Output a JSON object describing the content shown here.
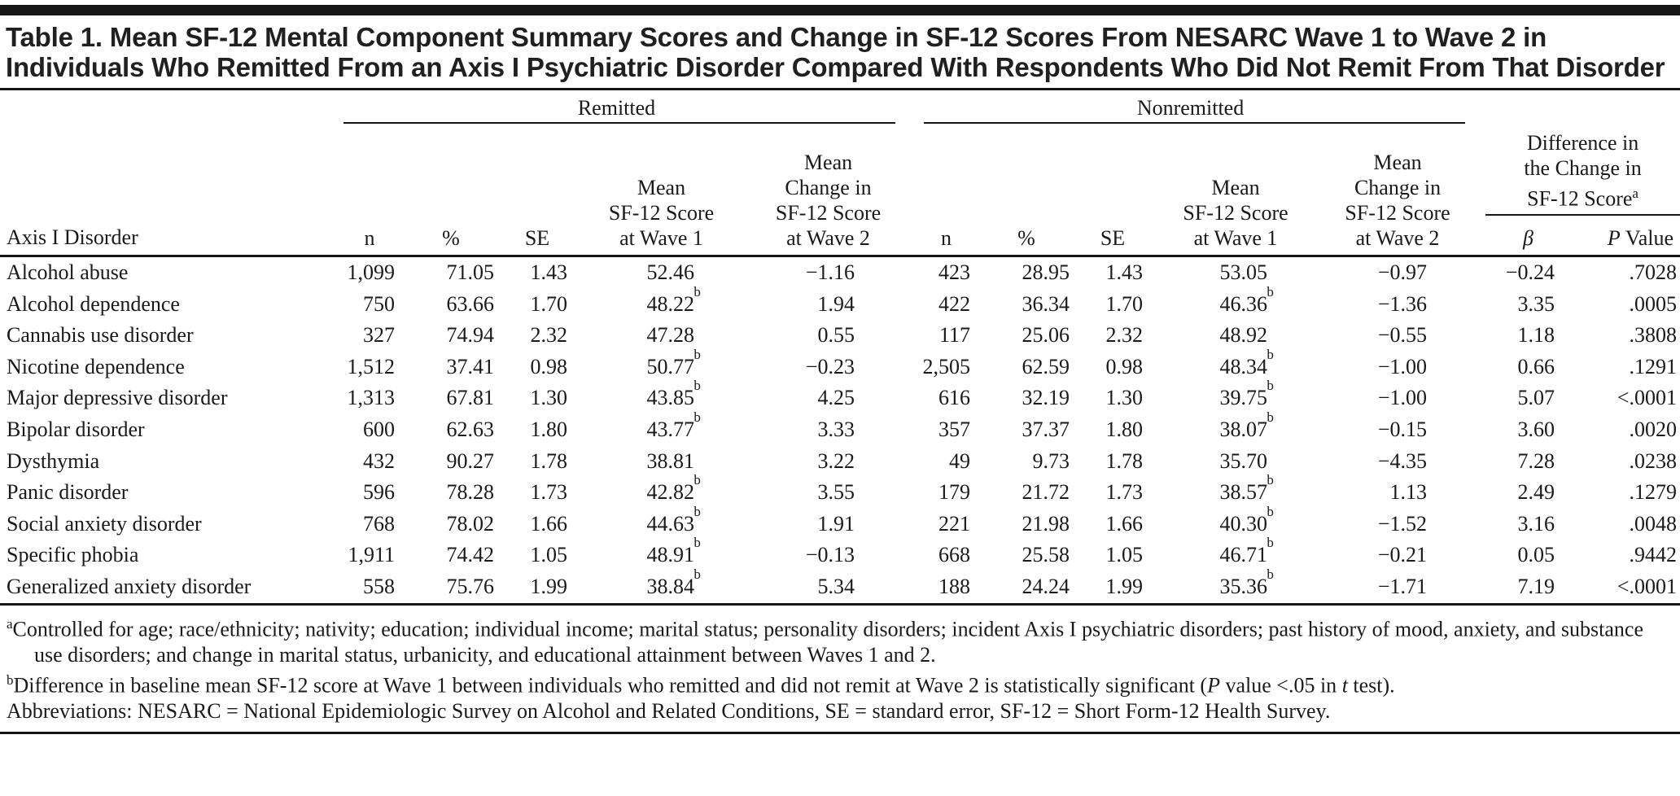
{
  "title": "Table 1. Mean SF-12 Mental Component Summary Scores and Change in SF-12 Scores From NESARC Wave 1 to Wave 2 in Individuals Who Remitted From an Axis I Psychiatric Disorder Compared With Respondents Who Did Not Remit From That Disorder",
  "table": {
    "row_axis_header": "Axis I Disorder",
    "groups": {
      "remitted_label": "Remitted",
      "nonremitted_label": "Nonremitted",
      "difference_label_lines": [
        "Difference in",
        "the Change in",
        "SF-12 Score"
      ],
      "difference_label_sup": "a"
    },
    "columns": {
      "n": "n",
      "percent": "%",
      "se": "SE",
      "mean_w1_lines": [
        "Mean",
        "SF-12 Score",
        "at Wave 1"
      ],
      "mean_change_w2_lines": [
        "Mean",
        "Change in",
        "SF-12 Score",
        "at Wave 2"
      ],
      "beta": "β",
      "p_value_segments": [
        {
          "i": "P"
        },
        {
          "t": " Value"
        }
      ]
    },
    "rows": [
      [
        "Alcohol abuse",
        "1,099",
        "71.05",
        "1.43",
        "52.46",
        "−1.16",
        "423",
        "28.95",
        "1.43",
        "53.05",
        "−0.97",
        "−0.24",
        ".7028"
      ],
      [
        "Alcohol dependence",
        "750",
        "63.66",
        "1.70",
        "48.22^b",
        "1.94",
        "422",
        "36.34",
        "1.70",
        "46.36^b",
        "−1.36",
        "3.35",
        ".0005"
      ],
      [
        "Cannabis use disorder",
        "327",
        "74.94",
        "2.32",
        "47.28",
        "0.55",
        "117",
        "25.06",
        "2.32",
        "48.92",
        "−0.55",
        "1.18",
        ".3808"
      ],
      [
        "Nicotine dependence",
        "1,512",
        "37.41",
        "0.98",
        "50.77^b",
        "−0.23",
        "2,505",
        "62.59",
        "0.98",
        "48.34^b",
        "−1.00",
        "0.66",
        ".1291"
      ],
      [
        "Major depressive disorder",
        "1,313",
        "67.81",
        "1.30",
        "43.85^b",
        "4.25",
        "616",
        "32.19",
        "1.30",
        "39.75^b",
        "−1.00",
        "5.07",
        "<.0001"
      ],
      [
        "Bipolar disorder",
        "600",
        "62.63",
        "1.80",
        "43.77^b",
        "3.33",
        "357",
        "37.37",
        "1.80",
        "38.07^b",
        "−0.15",
        "3.60",
        ".0020"
      ],
      [
        "Dysthymia",
        "432",
        "90.27",
        "1.78",
        "38.81",
        "3.22",
        "49",
        "9.73",
        "1.78",
        "35.70",
        "−4.35",
        "7.28",
        ".0238"
      ],
      [
        "Panic disorder",
        "596",
        "78.28",
        "1.73",
        "42.82^b",
        "3.55",
        "179",
        "21.72",
        "1.73",
        "38.57^b",
        "1.13",
        "2.49",
        ".1279"
      ],
      [
        "Social anxiety disorder",
        "768",
        "78.02",
        "1.66",
        "44.63^b",
        "1.91",
        "221",
        "21.98",
        "1.66",
        "40.30^b",
        "−1.52",
        "3.16",
        ".0048"
      ],
      [
        "Specific phobia",
        "1,911",
        "74.42",
        "1.05",
        "48.91^b",
        "−0.13",
        "668",
        "25.58",
        "1.05",
        "46.71^b",
        "−0.21",
        "0.05",
        ".9442"
      ],
      [
        "Generalized anxiety disorder",
        "558",
        "75.76",
        "1.99",
        "38.84^b",
        "5.34",
        "188",
        "24.24",
        "1.99",
        "35.36^b",
        "−1.71",
        "7.19",
        "<.0001"
      ]
    ]
  },
  "footnotes": [
    [
      {
        "sup": "a"
      },
      {
        "t": "Controlled for age; race/ethnicity; nativity; education; individual income; marital status; personality disorders; incident Axis I psychiatric disorders; past history of mood, anxiety, and substance use disorders; and change in marital status, urbanicity, and educational attainment between Waves 1 and 2."
      }
    ],
    [
      {
        "sup": "b"
      },
      {
        "t": "Difference in baseline mean SF-12 score at Wave 1 between individuals who remitted and did not remit at Wave 2 is statistically significant ("
      },
      {
        "i": "P"
      },
      {
        "t": " value <.05 in "
      },
      {
        "i": "t"
      },
      {
        "t": " test)."
      }
    ],
    [
      {
        "t": "Abbreviations: NESARC = National Epidemiologic Survey on Alcohol and Related Conditions, SE = standard error, SF-12 = Short Form-12 Health Survey."
      }
    ]
  ],
  "colors": {
    "background": "#ffffff",
    "text": "#1a1a1a",
    "rule": "#161616"
  }
}
